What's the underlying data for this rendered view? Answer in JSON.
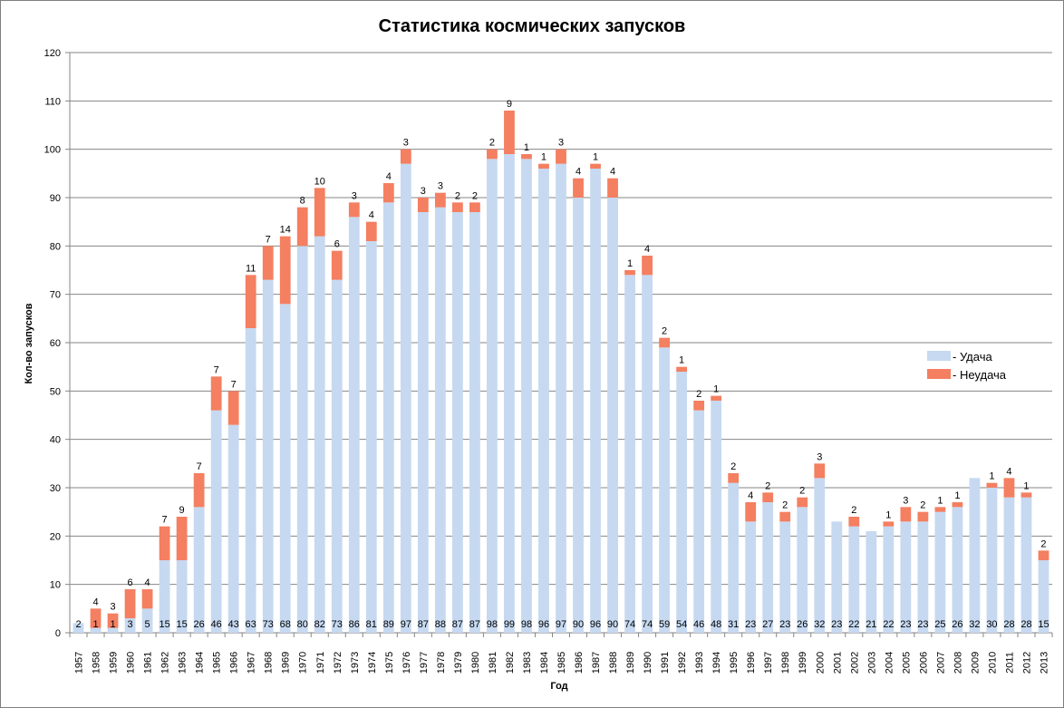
{
  "chart_data": {
    "type": "bar",
    "stacked": true,
    "title": "Статистика космических запусков",
    "xlabel": "Год",
    "ylabel": "Кол-во запусков",
    "ylim": [
      0,
      120
    ],
    "yticks": [
      0,
      10,
      20,
      30,
      40,
      50,
      60,
      70,
      80,
      90,
      100,
      110,
      120
    ],
    "grid": "horizontal",
    "legend_placement": "right",
    "categories": [
      "1957",
      "1958",
      "1959",
      "1960",
      "1961",
      "1962",
      "1963",
      "1964",
      "1965",
      "1966",
      "1967",
      "1968",
      "1969",
      "1970",
      "1971",
      "1972",
      "1973",
      "1974",
      "1975",
      "1976",
      "1977",
      "1978",
      "1979",
      "1980",
      "1981",
      "1982",
      "1983",
      "1984",
      "1985",
      "1986",
      "1987",
      "1988",
      "1989",
      "1990",
      "1991",
      "1992",
      "1993",
      "1994",
      "1995",
      "1996",
      "1997",
      "1998",
      "1999",
      "2000",
      "2001",
      "2002",
      "2003",
      "2004",
      "2005",
      "2006",
      "2007",
      "2008",
      "2009",
      "2010",
      "2011",
      "2012",
      "2013"
    ],
    "series": [
      {
        "name": "- Удача",
        "color": "#c6d9f1",
        "values": [
          2,
          1,
          1,
          3,
          5,
          15,
          15,
          26,
          46,
          43,
          63,
          73,
          68,
          80,
          82,
          73,
          86,
          81,
          89,
          97,
          87,
          88,
          87,
          87,
          98,
          99,
          98,
          96,
          97,
          90,
          96,
          90,
          74,
          74,
          59,
          54,
          46,
          48,
          31,
          23,
          27,
          23,
          26,
          32,
          23,
          22,
          21,
          22,
          23,
          23,
          25,
          26,
          32,
          30,
          28,
          28,
          15
        ]
      },
      {
        "name": "- Неудача",
        "color": "#f47f61",
        "values": [
          0,
          4,
          3,
          6,
          4,
          7,
          9,
          7,
          7,
          7,
          11,
          7,
          14,
          8,
          10,
          6,
          3,
          4,
          4,
          3,
          3,
          3,
          2,
          2,
          2,
          9,
          1,
          1,
          3,
          4,
          1,
          4,
          1,
          4,
          2,
          1,
          2,
          1,
          2,
          4,
          2,
          2,
          2,
          3,
          0,
          2,
          0,
          1,
          3,
          2,
          1,
          1,
          0,
          1,
          4,
          1,
          2
        ]
      }
    ]
  }
}
